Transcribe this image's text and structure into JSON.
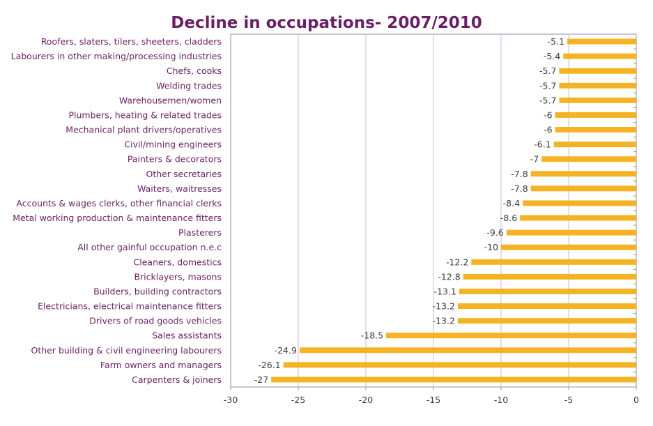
{
  "chart_data": {
    "type": "bar",
    "orientation": "horizontal",
    "title": "Decline in occupations- 2007/2010",
    "xlabel": "",
    "ylabel": "",
    "xlim": [
      -30,
      0
    ],
    "x_ticks": [
      "-30",
      "-25",
      "-20",
      "-15",
      "-10",
      "-5",
      "0"
    ],
    "grid": true,
    "legend": "none",
    "categories": [
      "Roofers, slaters, tilers, sheeters, cladders",
      "Labourers in other making/processing industries",
      "Chefs, cooks",
      "Welding trades",
      "Warehousemen/women",
      "Plumbers, heating & related trades",
      "Mechanical plant drivers/operatives",
      "Civil/mining engineers",
      "Painters & decorators",
      "Other secretaries",
      "Waiters, waitresses",
      "Accounts & wages clerks, other financial clerks",
      "Metal working production & maintenance fitters",
      "Plasterers",
      "All other gainful occupation n.e.c",
      "Cleaners, domestics",
      "Bricklayers, masons",
      "Builders, building contractors",
      "Electricians, electrical maintenance fitters",
      "Drivers of road goods vehicles",
      "Sales assistants",
      "Other building & civil engineering labourers",
      "Farm owners and managers",
      "Carpenters & joiners"
    ],
    "values": [
      -5.1,
      -5.4,
      -5.7,
      -5.7,
      -5.7,
      -6,
      -6,
      -6.1,
      -7,
      -7.8,
      -7.8,
      -8.4,
      -8.6,
      -9.6,
      -10,
      -12.2,
      -12.8,
      -13.1,
      -13.2,
      -13.2,
      -18.5,
      -24.9,
      -26.1,
      -27
    ],
    "value_labels": [
      "-5.1",
      "-5.4",
      "-5.7",
      "-5.7",
      "-5.7",
      "-6",
      "-6",
      "-6.1",
      "-7",
      "-7.8",
      "-7.8",
      "-8.4",
      "-8.6",
      "-9.6",
      "-10",
      "-12.2",
      "-12.8",
      "-13.1",
      "-13.2",
      "-13.2",
      "-18.5",
      "-24.9",
      "-26.1",
      "-27"
    ],
    "colors": {
      "bar": "#f5b323",
      "title": "#6a1f64",
      "category_text": "#6a1f64",
      "grid": "#c8b8d6",
      "axis": "#9a8aa8"
    }
  }
}
